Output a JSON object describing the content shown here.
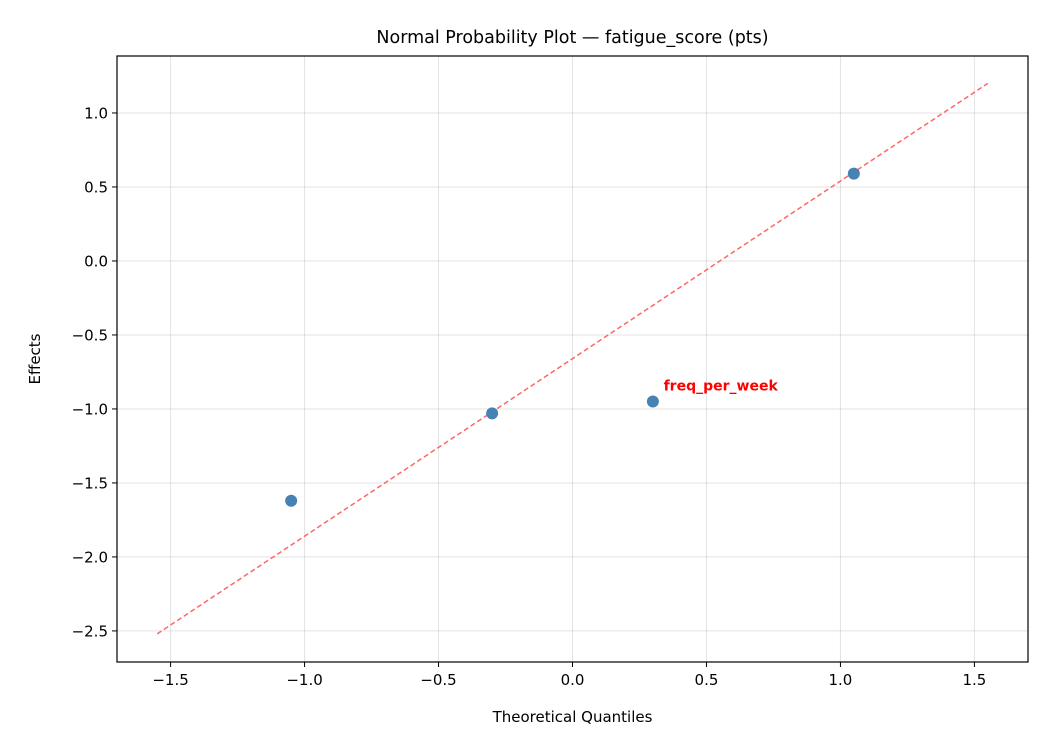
{
  "chart_data": {
    "type": "scatter",
    "title": "Normal Probability Plot — fatigue_score (pts)",
    "xlabel": "Theoretical Quantiles",
    "ylabel": "Effects",
    "xlim": [
      -1.7,
      1.7
    ],
    "ylim": [
      -2.71,
      1.385
    ],
    "xticks": [
      -1.5,
      -1.0,
      -0.5,
      0.0,
      0.5,
      1.0,
      1.5
    ],
    "xtick_labels": [
      "−1.5",
      "−1.0",
      "−0.5",
      "0.0",
      "0.5",
      "1.0",
      "1.5"
    ],
    "yticks": [
      1.0,
      0.5,
      0.0,
      -0.5,
      -1.0,
      -1.5,
      -2.0,
      -2.5
    ],
    "ytick_labels": [
      "1.0",
      "0.5",
      "0.0",
      "−0.5",
      "−1.0",
      "−1.5",
      "−2.0",
      "−2.5"
    ],
    "grid": true,
    "points": [
      {
        "x": -1.05,
        "y": -1.62
      },
      {
        "x": -0.3,
        "y": -1.03
      },
      {
        "x": 0.3,
        "y": -0.95
      },
      {
        "x": 1.05,
        "y": 0.59
      }
    ],
    "reference_line": {
      "x": [
        -1.55,
        1.55
      ],
      "y": [
        -2.52,
        1.2
      ],
      "color": "#ff6666",
      "style": "dashed"
    },
    "annotations": [
      {
        "text": "freq_per_week",
        "x": 0.34,
        "y": -0.84,
        "color": "#ff0000"
      }
    ],
    "point_color": "#4682b4"
  }
}
